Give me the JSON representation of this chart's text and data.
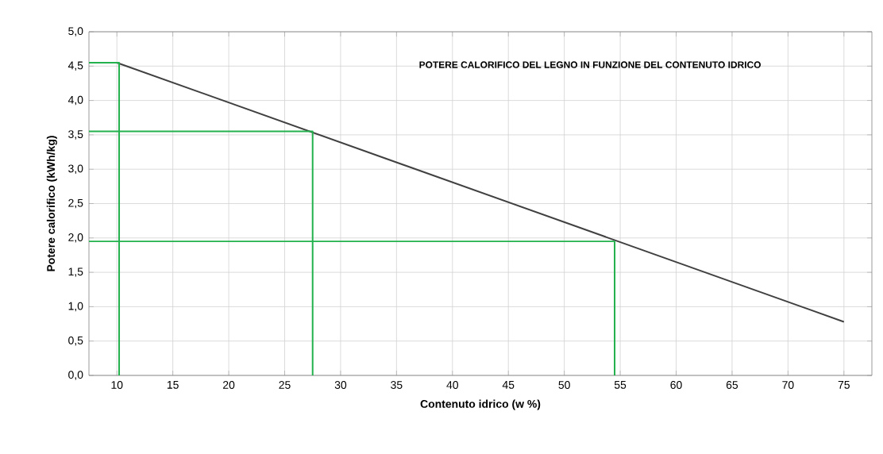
{
  "chart_data": {
    "type": "line",
    "title": "POTERE CALORIFICO DEL LEGNO IN FUNZIONE DEL CONTENUTO IDRICO",
    "xlabel": "Contenuto idrico (w %)",
    "ylabel": "Potere calorifico (kWh/kg)",
    "xlim": [
      7.5,
      77.5
    ],
    "xticks": [
      10,
      15,
      20,
      25,
      30,
      35,
      40,
      45,
      50,
      55,
      60,
      65,
      70,
      75
    ],
    "ylim": [
      0,
      5
    ],
    "yticks": [
      {
        "value": 0,
        "label": "0,0"
      },
      {
        "value": 0.5,
        "label": "0,5"
      },
      {
        "value": 1,
        "label": "1,0"
      },
      {
        "value": 1.5,
        "label": "1,5"
      },
      {
        "value": 2,
        "label": "2,0"
      },
      {
        "value": 2.5,
        "label": "2,5"
      },
      {
        "value": 3,
        "label": "3,0"
      },
      {
        "value": 3.5,
        "label": "3,5"
      },
      {
        "value": 4,
        "label": "4,0"
      },
      {
        "value": 4.5,
        "label": "4,5"
      },
      {
        "value": 5,
        "label": "5,0"
      }
    ],
    "grid": true,
    "series": [
      {
        "color": "#404040",
        "x": [
          10,
          75
        ],
        "values": [
          4.55,
          0.78
        ]
      },
      {
        "color": "#22b14c",
        "x": [
          7.5,
          10.2,
          10.2
        ],
        "values": [
          4.55,
          4.55,
          0
        ]
      },
      {
        "color": "#22b14c",
        "x": [
          7.5,
          27.5,
          27.5
        ],
        "values": [
          3.55,
          3.55,
          0
        ]
      },
      {
        "color": "#22b14c",
        "x": [
          7.5,
          54.5,
          54.5
        ],
        "values": [
          1.95,
          1.95,
          0
        ]
      }
    ]
  }
}
